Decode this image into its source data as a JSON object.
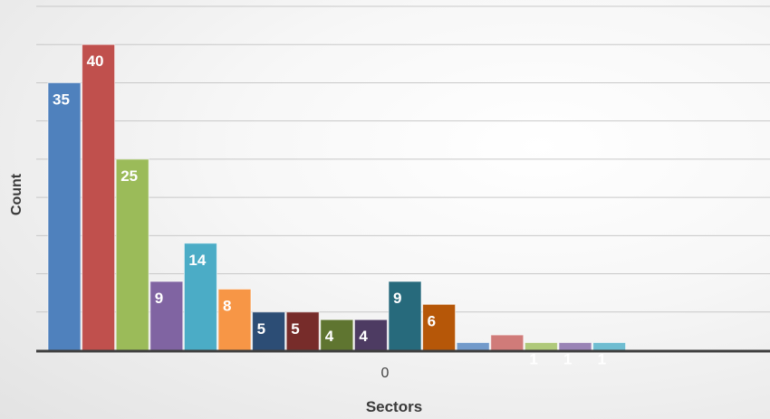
{
  "chart_data": {
    "type": "bar",
    "title": "",
    "xlabel": "Sectors",
    "ylabel": "Count",
    "categories": [
      "0"
    ],
    "ylim": [
      0,
      45
    ],
    "grid": true,
    "series": [
      {
        "value": 35,
        "label": "35",
        "color": "#4f81bd"
      },
      {
        "value": 40,
        "label": "40",
        "color": "#c0504d"
      },
      {
        "value": 25,
        "label": "25",
        "color": "#9bbb59"
      },
      {
        "value": 9,
        "label": "9",
        "color": "#8064a2"
      },
      {
        "value": 14,
        "label": "14",
        "color": "#4bacc6"
      },
      {
        "value": 8,
        "label": "8",
        "color": "#f79646"
      },
      {
        "value": 5,
        "label": "5",
        "color": "#2c4d75"
      },
      {
        "value": 5,
        "label": "5",
        "color": "#772c2a"
      },
      {
        "value": 4,
        "label": "4",
        "color": "#5f7530"
      },
      {
        "value": 4,
        "label": "4",
        "color": "#4d3b62"
      },
      {
        "value": 9,
        "label": "9",
        "color": "#276a7c"
      },
      {
        "value": 6,
        "label": "6",
        "color": "#b65708"
      },
      {
        "value": 1,
        "label": "",
        "color": "#729aca"
      },
      {
        "value": 2,
        "label": "",
        "color": "#d07b79"
      },
      {
        "value": 1,
        "label": "1",
        "color": "#afc97a"
      },
      {
        "value": 1,
        "label": "1",
        "color": "#9983b5"
      },
      {
        "value": 1,
        "label": "1",
        "color": "#6fbdd1"
      }
    ]
  }
}
